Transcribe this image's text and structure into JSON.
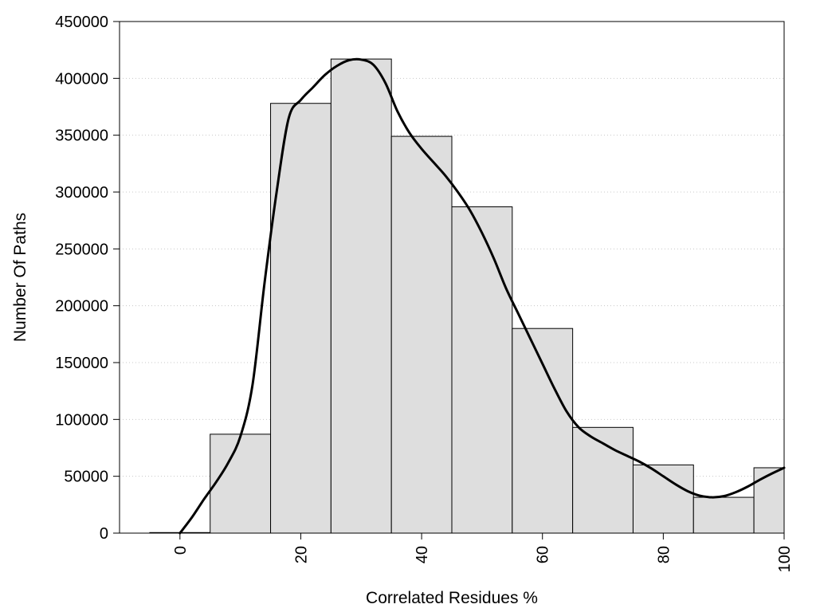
{
  "chart_data": {
    "type": "bar",
    "title": "",
    "xlabel": "Correlated Residues %",
    "ylabel": "Number Of Paths",
    "xlim": [
      -10,
      100
    ],
    "ylim": [
      0,
      450000
    ],
    "x_ticks": [
      0,
      20,
      40,
      60,
      80,
      100
    ],
    "y_ticks": [
      0,
      50000,
      100000,
      150000,
      200000,
      250000,
      300000,
      350000,
      400000,
      450000
    ],
    "grid": {
      "y": true,
      "x": false,
      "style": "dotted"
    },
    "bar_width": 10,
    "bars": [
      {
        "x": 0,
        "value": 500
      },
      {
        "x": 10,
        "value": 87000
      },
      {
        "x": 20,
        "value": 378000
      },
      {
        "x": 30,
        "value": 417000
      },
      {
        "x": 40,
        "value": 349000
      },
      {
        "x": 50,
        "value": 287000
      },
      {
        "x": 60,
        "value": 180000
      },
      {
        "x": 70,
        "value": 93000
      },
      {
        "x": 80,
        "value": 60000
      },
      {
        "x": 90,
        "value": 31500
      },
      {
        "x": 100,
        "value": 57500
      }
    ],
    "curve": {
      "type": "smooth-line",
      "points": [
        [
          0,
          0
        ],
        [
          2,
          14000
        ],
        [
          4,
          30000
        ],
        [
          6,
          45000
        ],
        [
          8,
          62000
        ],
        [
          10,
          85000
        ],
        [
          12,
          130000
        ],
        [
          14,
          220000
        ],
        [
          16,
          300000
        ],
        [
          18,
          365000
        ],
        [
          20,
          381000
        ],
        [
          22,
          392000
        ],
        [
          24,
          403000
        ],
        [
          26,
          411000
        ],
        [
          28,
          416000
        ],
        [
          30,
          416500
        ],
        [
          32,
          412000
        ],
        [
          34,
          396000
        ],
        [
          36,
          371000
        ],
        [
          38,
          352000
        ],
        [
          40,
          338000
        ],
        [
          42,
          326000
        ],
        [
          44,
          314000
        ],
        [
          46,
          300000
        ],
        [
          48,
          284000
        ],
        [
          50,
          264000
        ],
        [
          52,
          241000
        ],
        [
          54,
          215000
        ],
        [
          56,
          193000
        ],
        [
          58,
          171000
        ],
        [
          60,
          149000
        ],
        [
          62,
          127000
        ],
        [
          64,
          107000
        ],
        [
          66,
          93000
        ],
        [
          68,
          85000
        ],
        [
          70,
          79000
        ],
        [
          72,
          73000
        ],
        [
          74,
          68000
        ],
        [
          76,
          63000
        ],
        [
          78,
          57000
        ],
        [
          80,
          50000
        ],
        [
          82,
          43000
        ],
        [
          84,
          37000
        ],
        [
          86,
          33000
        ],
        [
          88,
          31500
        ],
        [
          90,
          32500
        ],
        [
          92,
          36000
        ],
        [
          94,
          41000
        ],
        [
          96,
          47000
        ],
        [
          98,
          52500
        ],
        [
          100,
          57500
        ]
      ]
    },
    "colors": {
      "bar_fill": "#dedede",
      "bar_stroke": "#000000",
      "curve": "#000000",
      "grid": "#c8c8c8",
      "frame": "#000000"
    }
  }
}
